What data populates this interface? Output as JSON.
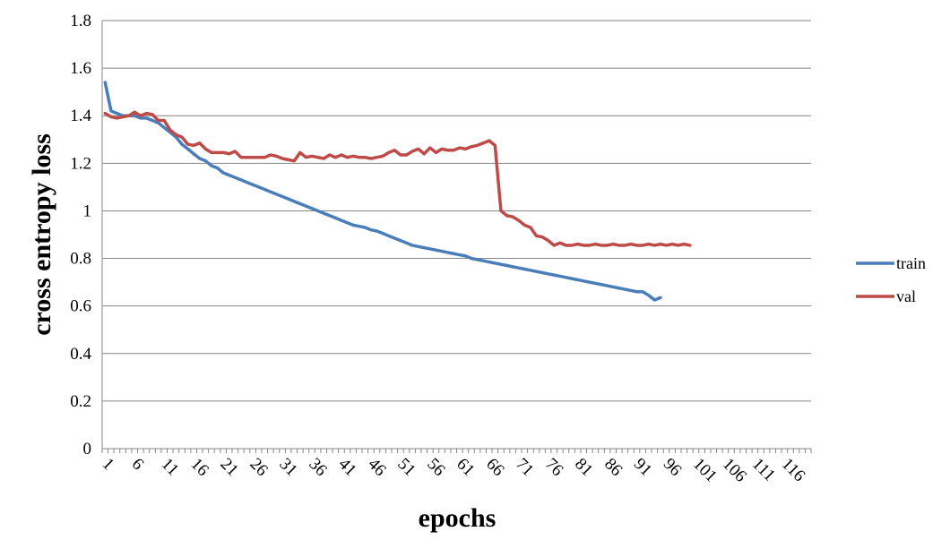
{
  "chart_data": {
    "type": "line",
    "title": "",
    "xlabel": "epochs",
    "ylabel": "cross entropy loss",
    "ylim": [
      0,
      1.8
    ],
    "yticks": [
      "0",
      "0.2",
      "0.4",
      "0.6",
      "0.8",
      "1",
      "1.2",
      "1.4",
      "1.6",
      "1.8"
    ],
    "x_categories_count": 120,
    "xtick_labels": [
      "1",
      "6",
      "11",
      "16",
      "21",
      "26",
      "31",
      "36",
      "41",
      "46",
      "51",
      "56",
      "61",
      "66",
      "71",
      "76",
      "81",
      "86",
      "91",
      "96",
      "101",
      "106",
      "111",
      "116"
    ],
    "grid": "horizontal",
    "legend_position": "right",
    "series": [
      {
        "name": "train",
        "color": "#4a7ebb",
        "x_start": 1,
        "values": [
          1.54,
          1.42,
          1.41,
          1.4,
          1.4,
          1.4,
          1.39,
          1.39,
          1.38,
          1.37,
          1.35,
          1.33,
          1.31,
          1.28,
          1.26,
          1.24,
          1.22,
          1.21,
          1.19,
          1.18,
          1.16,
          1.15,
          1.14,
          1.13,
          1.12,
          1.11,
          1.1,
          1.09,
          1.08,
          1.07,
          1.06,
          1.05,
          1.04,
          1.03,
          1.02,
          1.01,
          1.0,
          0.99,
          0.98,
          0.97,
          0.96,
          0.95,
          0.94,
          0.935,
          0.93,
          0.92,
          0.915,
          0.905,
          0.895,
          0.885,
          0.875,
          0.865,
          0.855,
          0.85,
          0.845,
          0.84,
          0.835,
          0.83,
          0.825,
          0.82,
          0.815,
          0.81,
          0.8,
          0.795,
          0.79,
          0.785,
          0.78,
          0.775,
          0.77,
          0.765,
          0.76,
          0.755,
          0.75,
          0.745,
          0.74,
          0.735,
          0.73,
          0.725,
          0.72,
          0.715,
          0.71,
          0.705,
          0.7,
          0.695,
          0.69,
          0.685,
          0.68,
          0.675,
          0.67,
          0.665,
          0.66,
          0.66,
          0.645,
          0.625,
          0.635
        ]
      },
      {
        "name": "val",
        "color": "#be4b48",
        "x_start": 1,
        "values": [
          1.41,
          1.395,
          1.39,
          1.395,
          1.4,
          1.415,
          1.4,
          1.41,
          1.405,
          1.38,
          1.38,
          1.34,
          1.32,
          1.31,
          1.28,
          1.275,
          1.285,
          1.26,
          1.245,
          1.245,
          1.245,
          1.24,
          1.25,
          1.225,
          1.225,
          1.225,
          1.225,
          1.225,
          1.235,
          1.23,
          1.22,
          1.215,
          1.21,
          1.245,
          1.225,
          1.23,
          1.225,
          1.22,
          1.235,
          1.225,
          1.235,
          1.225,
          1.23,
          1.225,
          1.225,
          1.22,
          1.225,
          1.23,
          1.245,
          1.255,
          1.235,
          1.235,
          1.25,
          1.26,
          1.24,
          1.265,
          1.245,
          1.26,
          1.255,
          1.255,
          1.265,
          1.26,
          1.27,
          1.275,
          1.285,
          1.295,
          1.275,
          1.0,
          0.98,
          0.975,
          0.96,
          0.94,
          0.93,
          0.895,
          0.89,
          0.875,
          0.855,
          0.865,
          0.855,
          0.855,
          0.86,
          0.855,
          0.855,
          0.86,
          0.855,
          0.855,
          0.86,
          0.855,
          0.855,
          0.86,
          0.855,
          0.855,
          0.86,
          0.855,
          0.86,
          0.855,
          0.86,
          0.855,
          0.86,
          0.855
        ]
      }
    ]
  }
}
